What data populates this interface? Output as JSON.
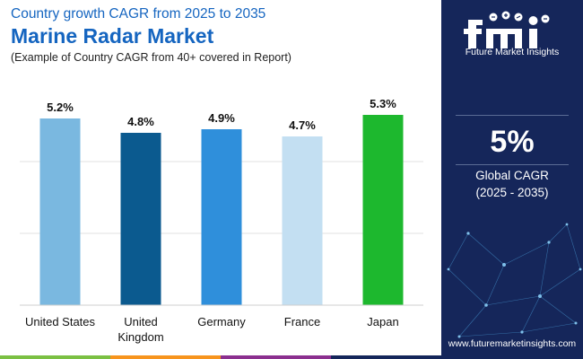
{
  "header": {
    "subtitle": "Country growth CAGR from 2025 to 2035",
    "title": "Marine Radar Market",
    "note": "(Example of Country CAGR from 40+ covered in Report)"
  },
  "sidebar": {
    "logo_name": "Future Market Insights",
    "value": "5%",
    "label_line1": "Global CAGR",
    "label_line2": "(2025 - 2035)",
    "website": "www.futuremarketinsights.com"
  },
  "colors": {
    "title": "#1565c0",
    "panel": "#15265a",
    "bars": [
      "#7ab8e0",
      "#0b5a8f",
      "#2f8fdb",
      "#c3dff2",
      "#1db82e"
    ],
    "accent_bar": [
      "#7bc043",
      "#f7941d",
      "#8b2f8f",
      "#15265a"
    ]
  },
  "chart_data": {
    "type": "bar",
    "categories": [
      "United States",
      "United Kingdom",
      "Germany",
      "France",
      "Japan"
    ],
    "category_lines": [
      [
        "United States"
      ],
      [
        "United",
        "Kingdom"
      ],
      [
        "Germany"
      ],
      [
        "France"
      ],
      [
        "Japan"
      ]
    ],
    "values": [
      5.2,
      4.8,
      4.9,
      4.7,
      5.3
    ],
    "labels": [
      "5.2%",
      "4.8%",
      "4.9%",
      "4.7%",
      "5.3%"
    ],
    "unit": "%",
    "ylim": [
      0,
      5.3
    ],
    "grid": true,
    "title": "",
    "xlabel": "",
    "ylabel": ""
  }
}
